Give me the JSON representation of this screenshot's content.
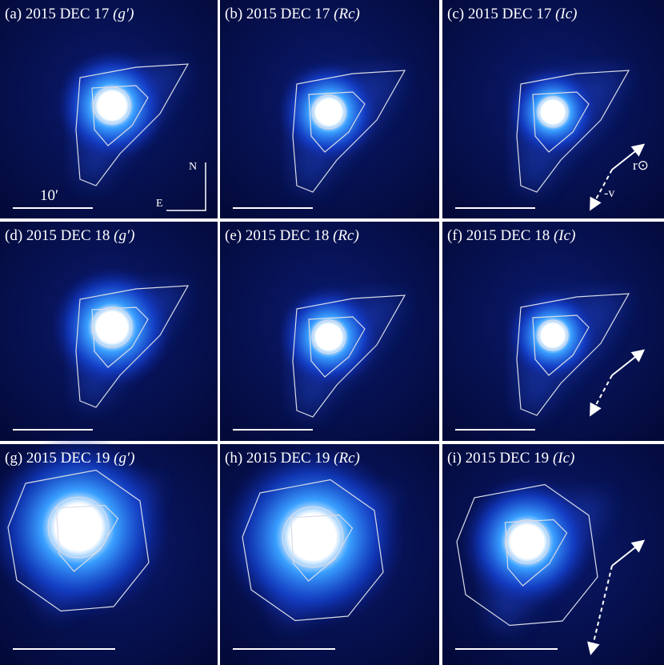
{
  "panels": [
    {
      "date": "(a) 2015 DEC 17",
      "filter": "(g′)"
    },
    {
      "date": "(b) 2015 DEC 17",
      "filter": "(Rc)"
    },
    {
      "date": "(c) 2015 DEC 17",
      "filter": "(Ic)"
    },
    {
      "date": "(d) 2015 DEC 18",
      "filter": "(g′)"
    },
    {
      "date": "(e) 2015 DEC 18",
      "filter": "(Rc)"
    },
    {
      "date": "(f) 2015 DEC 18",
      "filter": "(Ic)"
    },
    {
      "date": "(g) 2015 DEC 19",
      "filter": "(g′)"
    },
    {
      "date": "(h) 2015 DEC 19",
      "filter": "(Rc)"
    },
    {
      "date": "(i) 2015 DEC 19",
      "filter": "(Ic)"
    }
  ],
  "scale_label": "10′",
  "compass": {
    "north": "N",
    "east": "E"
  },
  "arrows": {
    "sun": "r⊙",
    "velocity": "-v"
  }
}
